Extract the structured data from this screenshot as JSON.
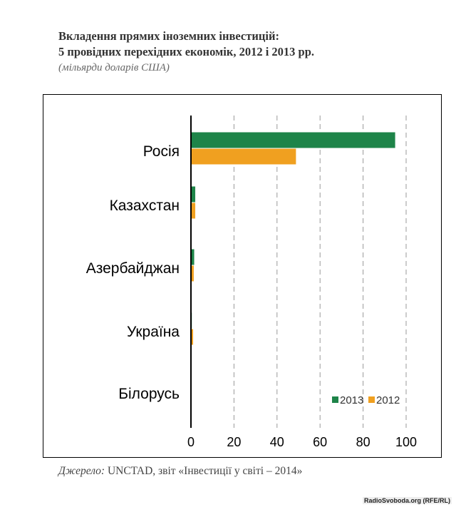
{
  "header": {
    "title_line1": "Вкладення прямих іноземних інвестицій:",
    "title_line2": "5 провідних перехідних економік, 2012 і 2013 рр.",
    "subtitle": "(мільярди доларів США)"
  },
  "footer": {
    "source_label": "Джерело:",
    "source_text": " UNCTAD, звіт «Інвестиції у світі – 2014»",
    "credit": "RadioSvoboda.org (RFE/RL)"
  },
  "chart_data": {
    "type": "bar",
    "orientation": "horizontal",
    "title": "Вкладення прямих іноземних інвестицій: 5 провідних перехідних економік, 2012 і 2013 рр.",
    "subtitle": "(мільярди доларів США)",
    "xlabel": "",
    "ylabel": "",
    "categories": [
      "Росія",
      "Казахстан",
      "Азербайджан",
      "Україна",
      "Білорусь"
    ],
    "series": [
      {
        "name": "2013",
        "values": [
          94.9,
          2.0,
          1.5,
          0.4,
          0.2
        ],
        "color": "#1e8449"
      },
      {
        "name": "2012",
        "values": [
          48.8,
          2.0,
          1.3,
          1.0,
          0.3
        ],
        "color": "#f0a020"
      }
    ],
    "xlim": [
      0,
      100
    ],
    "xticks": [
      "0",
      "20",
      "40",
      "60",
      "80",
      "100"
    ],
    "grid": "vertical-dashed",
    "legend_position": "bottom-right",
    "legend": [
      "2013",
      "2012"
    ]
  }
}
